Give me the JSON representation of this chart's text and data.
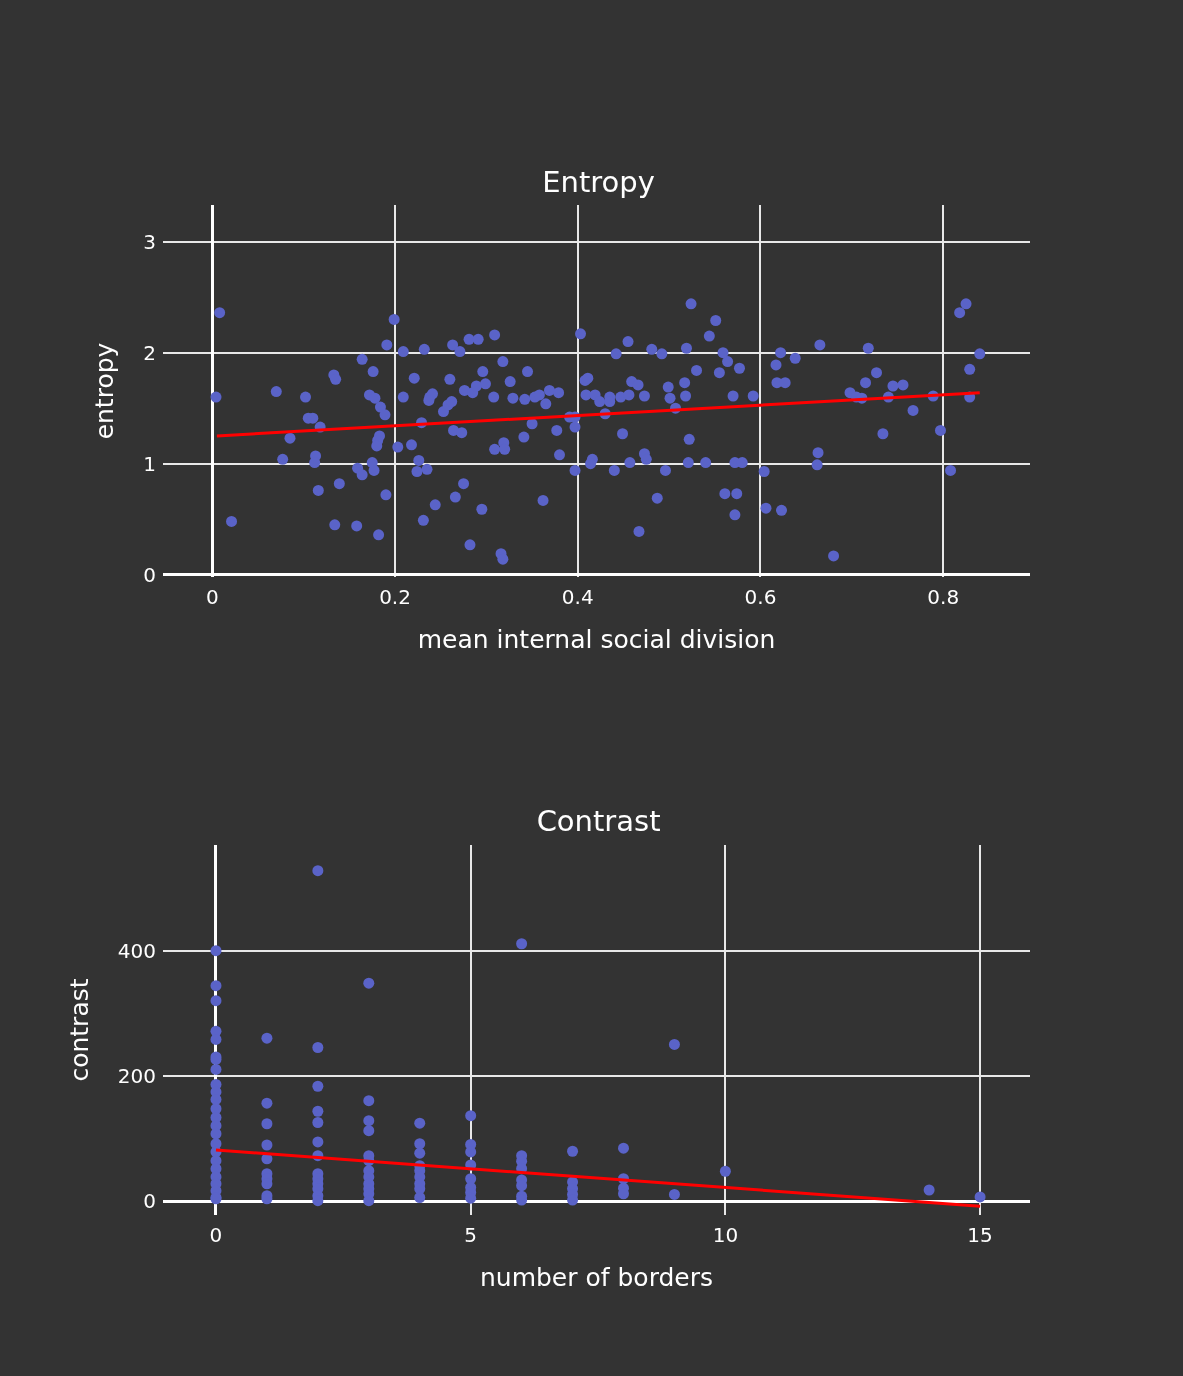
{
  "chart_data": [
    {
      "type": "scatter",
      "title": "Entropy",
      "xlabel": "mean internal social division",
      "ylabel": "entropy",
      "xlim": [
        -0.054,
        0.895
      ],
      "ylim": [
        -0.02,
        3.33
      ],
      "xticks": [
        0,
        0.2,
        0.4,
        0.6,
        0.8
      ],
      "yticks": [
        0,
        1,
        2,
        3
      ],
      "grid": true,
      "series": [
        {
          "type": "scatter",
          "marker": "circle",
          "color": "#5a63c8",
          "x": [
            0.008,
            0.004,
            0.021,
            0.07,
            0.077,
            0.085,
            0.102,
            0.105,
            0.11,
            0.118,
            0.113,
            0.112,
            0.116,
            0.133,
            0.135,
            0.134,
            0.139,
            0.158,
            0.159,
            0.164,
            0.164,
            0.176,
            0.172,
            0.178,
            0.184,
            0.189,
            0.175,
            0.177,
            0.183,
            0.181,
            0.18,
            0.182,
            0.19,
            0.191,
            0.199,
            0.209,
            0.209,
            0.203,
            0.218,
            0.221,
            0.229,
            0.226,
            0.224,
            0.235,
            0.232,
            0.231,
            0.244,
            0.238,
            0.241,
            0.237,
            0.253,
            0.258,
            0.262,
            0.26,
            0.263,
            0.271,
            0.281,
            0.291,
            0.309,
            0.264,
            0.273,
            0.266,
            0.275,
            0.282,
            0.295,
            0.276,
            0.285,
            0.289,
            0.299,
            0.296,
            0.308,
            0.318,
            0.326,
            0.309,
            0.319,
            0.32,
            0.316,
            0.318,
            0.329,
            0.345,
            0.341,
            0.342,
            0.353,
            0.358,
            0.365,
            0.35,
            0.362,
            0.369,
            0.379,
            0.377,
            0.38,
            0.391,
            0.397,
            0.397,
            0.397,
            0.403,
            0.408,
            0.411,
            0.409,
            0.419,
            0.424,
            0.435,
            0.435,
            0.447,
            0.456,
            0.43,
            0.442,
            0.455,
            0.459,
            0.466,
            0.473,
            0.481,
            0.492,
            0.499,
            0.501,
            0.507,
            0.517,
            0.518,
            0.519,
            0.524,
            0.53,
            0.544,
            0.551,
            0.559,
            0.564,
            0.555,
            0.577,
            0.57,
            0.592,
            0.449,
            0.522,
            0.416,
            0.414,
            0.44,
            0.457,
            0.473,
            0.475,
            0.496,
            0.521,
            0.54,
            0.572,
            0.58,
            0.604,
            0.487,
            0.561,
            0.574,
            0.572,
            0.467,
            0.606,
            0.623,
            0.617,
            0.622,
            0.638,
            0.618,
            0.627,
            0.665,
            0.663,
            0.662,
            0.68,
            0.698,
            0.705,
            0.711,
            0.718,
            0.715,
            0.727,
            0.734,
            0.74,
            0.745,
            0.756,
            0.767,
            0.789,
            0.797,
            0.808,
            0.818,
            0.825,
            0.829,
            0.84,
            0.829
          ],
          "values": [
            2.36,
            1.6,
            0.48,
            1.65,
            1.04,
            1.23,
            1.6,
            1.41,
            1.41,
            1.33,
            1.07,
            1.01,
            0.76,
            1.8,
            1.76,
            0.45,
            0.82,
            0.44,
            0.96,
            0.9,
            1.94,
            1.83,
            1.62,
            1.59,
            1.51,
            1.44,
            1.01,
            0.94,
            1.25,
            1.21,
            1.16,
            0.36,
            0.72,
            2.07,
            2.3,
            2.01,
            1.6,
            1.15,
            1.17,
            1.77,
            1.37,
            1.03,
            0.93,
            0.95,
            2.03,
            0.49,
            0.63,
            1.6,
            1.63,
            1.57,
            1.47,
            1.53,
            1.56,
            1.76,
            2.07,
            2.01,
            2.12,
            2.12,
            2.16,
            1.3,
            1.28,
            0.7,
            0.82,
            0.27,
            0.59,
            1.66,
            1.64,
            1.7,
            1.72,
            1.83,
            1.6,
            1.92,
            1.74,
            1.13,
            1.19,
            1.13,
            0.19,
            0.14,
            1.59,
            1.83,
            1.24,
            1.58,
            1.6,
            1.62,
            1.54,
            1.36,
            0.67,
            1.66,
            1.64,
            1.3,
            1.08,
            1.42,
            1.42,
            1.33,
            0.94,
            2.17,
            1.75,
            1.77,
            1.62,
            1.62,
            1.56,
            1.6,
            1.56,
            1.6,
            1.62,
            1.45,
            1.99,
            2.1,
            1.74,
            1.71,
            1.61,
            2.03,
            1.99,
            1.69,
            1.59,
            1.5,
            1.73,
            1.61,
            2.04,
            2.44,
            1.84,
            2.15,
            2.29,
            2.0,
            1.92,
            1.82,
            1.86,
            1.61,
            1.61,
            1.27,
            1.22,
            1.04,
            1.0,
            0.94,
            1.01,
            1.09,
            1.04,
            0.94,
            1.01,
            1.01,
            1.01,
            1.01,
            0.93,
            0.69,
            0.73,
            0.73,
            0.54,
            0.39,
            0.6,
            0.58,
            1.89,
            2.0,
            1.95,
            1.73,
            1.73,
            2.07,
            1.1,
            0.99,
            0.17,
            1.64,
            1.6,
            1.59,
            2.04,
            1.73,
            1.82,
            1.27,
            1.6,
            1.7,
            1.71,
            1.48,
            1.61,
            1.3,
            0.94,
            2.36,
            2.44,
            1.85,
            1.99,
            1.6
          ]
        },
        {
          "type": "line",
          "color": "#ff0000",
          "x": [
            0.005,
            0.84
          ],
          "values": [
            1.25,
            1.64
          ]
        }
      ]
    },
    {
      "type": "scatter",
      "title": "Contrast",
      "xlabel": "number of borders",
      "ylabel": "contrast",
      "xlim": [
        -1.04,
        15.98
      ],
      "ylim": [
        -22,
        570
      ],
      "xticks": [
        0,
        5,
        10,
        15
      ],
      "yticks": [
        0,
        200,
        400
      ],
      "grid": true,
      "series": [
        {
          "type": "scatter",
          "marker": "circle",
          "color": "#5a63c8",
          "x": [
            0,
            0,
            0,
            0,
            0,
            0,
            0,
            0,
            0,
            0,
            0,
            0,
            0,
            0,
            0,
            0,
            0,
            0,
            0,
            0,
            0,
            0,
            0,
            0,
            1,
            1,
            1,
            1,
            1,
            1,
            1,
            1,
            1,
            1,
            2,
            2,
            2,
            2,
            2,
            2,
            2,
            2,
            2,
            2,
            2,
            2,
            2,
            3,
            3,
            3,
            3,
            3,
            3,
            3,
            3,
            3,
            3,
            3,
            3,
            4,
            4,
            4,
            4,
            4,
            4,
            4,
            4,
            4,
            5,
            5,
            5,
            5,
            5,
            5,
            5,
            5,
            6,
            6,
            6,
            6,
            6,
            6,
            6,
            6,
            7,
            7,
            7,
            7,
            7,
            8,
            8,
            8,
            8,
            9,
            9,
            10,
            14,
            15
          ],
          "values": [
            401,
            345,
            321,
            272,
            259,
            231,
            227,
            211,
            187,
            175,
            163,
            148,
            134,
            121,
            108,
            92,
            79,
            65,
            52,
            39,
            28,
            17,
            6,
            4,
            261,
            157,
            124,
            90,
            68,
            44,
            36,
            28,
            9,
            4,
            529,
            246,
            184,
            144,
            126,
            95,
            73,
            44,
            36,
            28,
            20,
            9,
            1,
            349,
            161,
            129,
            113,
            73,
            65,
            49,
            39,
            28,
            20,
            12,
            1,
            125,
            92,
            77,
            57,
            49,
            39,
            28,
            20,
            6,
            137,
            91,
            79,
            58,
            36,
            22,
            14,
            5,
            412,
            73,
            64,
            52,
            34,
            25,
            8,
            2,
            80,
            31,
            20,
            11,
            2,
            85,
            36,
            21,
            12,
            251,
            11,
            48,
            18,
            7
          ]
        },
        {
          "type": "line",
          "color": "#ff0000",
          "x": [
            0,
            15
          ],
          "values": [
            82,
            -8
          ]
        }
      ]
    }
  ]
}
